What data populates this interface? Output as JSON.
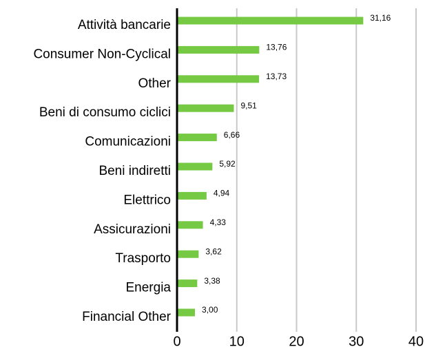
{
  "chart_data": {
    "type": "bar",
    "orientation": "horizontal",
    "categories": [
      "Attività bancarie",
      "Consumer Non-Cyclical",
      "Other",
      "Beni di consumo ciclici",
      "Comunicazioni",
      "Beni indiretti",
      "Elettrico",
      "Assicurazioni",
      "Trasporto",
      "Energia",
      "Financial Other"
    ],
    "values": [
      31.16,
      13.76,
      13.73,
      9.51,
      6.66,
      5.92,
      4.94,
      4.33,
      3.62,
      3.38,
      3.0
    ],
    "value_labels": [
      "31,16",
      "13,76",
      "13,73",
      "9,51",
      "6,66",
      "5,92",
      "4,94",
      "4,33",
      "3,62",
      "3,38",
      "3,00"
    ],
    "color": "#76c942",
    "xlim": [
      0,
      40
    ],
    "xticks": [
      0,
      10,
      20,
      30,
      40
    ],
    "grid": true
  }
}
